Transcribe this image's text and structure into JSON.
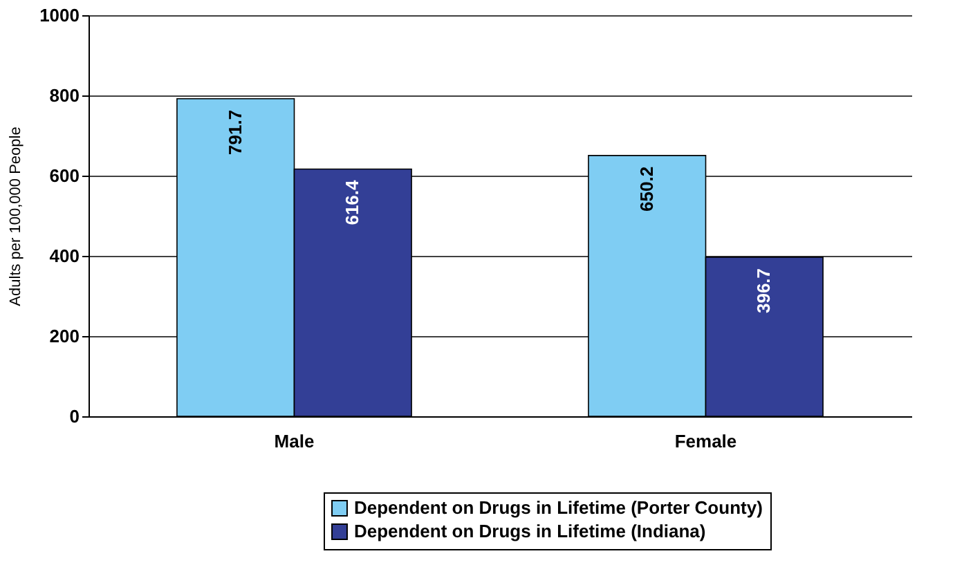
{
  "chart_data": {
    "type": "bar",
    "ylabel": "Adults  per 100,000 People",
    "categories": [
      "Male",
      "Female"
    ],
    "series": [
      {
        "name": "Dependent on Drugs in Lifetime (Porter County)",
        "color": "#7fcdf3",
        "values": [
          791.7,
          650.2
        ]
      },
      {
        "name": "Dependent on Drugs in Lifetime (Indiana)",
        "color": "#333f96",
        "values": [
          616.4,
          396.7
        ]
      }
    ],
    "ylim": [
      0,
      1000
    ],
    "yticks": [
      0,
      200,
      400,
      600,
      800,
      1000
    ],
    "grid": "y",
    "legend": "bottom",
    "data_labels": true
  }
}
